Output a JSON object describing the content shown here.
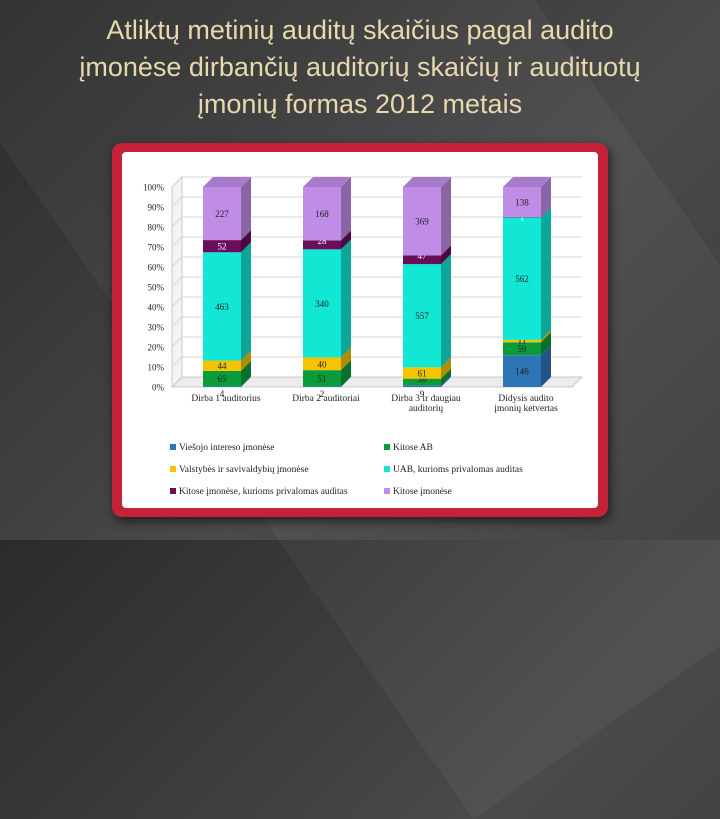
{
  "title": {
    "lines": [
      "Atliktų metinių auditų skaičius pagal audito",
      "įmonėse dirbančių auditorių skaičių ir audituotų",
      "įmonių formas 2012 metais"
    ]
  },
  "colors": {
    "frame": "#c5223a",
    "title_text": "#e8d9ad"
  },
  "chart_data": {
    "type": "bar",
    "stacked": "percent",
    "yticks": [
      "0%",
      "10%",
      "20%",
      "30%",
      "40%",
      "50%",
      "60%",
      "70%",
      "80%",
      "90%",
      "100%"
    ],
    "ylim": [
      0,
      100
    ],
    "grid": true,
    "categories": [
      [
        "Dirba 1 auditorius"
      ],
      [
        "Dirba 2 auditoriai"
      ],
      [
        "Dirba 3 ir daugiau",
        "auditorių"
      ],
      [
        "Didysis audito",
        "įmonių ketvertas"
      ]
    ],
    "series": [
      {
        "name": "Viešojo intereso įmonėse",
        "color": "#2e75b6",
        "values": [
          4,
          2,
          9,
          146
        ]
      },
      {
        "name": "Kitose AB",
        "color": "#0a9c3a",
        "values": [
          65,
          51,
          36,
          59
        ]
      },
      {
        "name": "Valstybės ir savivaldybių įmonėse",
        "color": "#f5c400",
        "values": [
          44,
          40,
          61,
          11
        ]
      },
      {
        "name": "UAB, kurioms privalomas auditas",
        "color": "#12e6d4",
        "values": [
          463,
          340,
          557,
          562
        ]
      },
      {
        "name": "Kitose įmonėse, kurioms privalomas auditas",
        "color": "#6a0d5a",
        "values": [
          52,
          28,
          47,
          1
        ]
      },
      {
        "name": "Kitose įmonėse",
        "color": "#bf8ce6",
        "values": [
          227,
          168,
          369,
          138
        ]
      }
    ],
    "legend_position": "bottom"
  }
}
